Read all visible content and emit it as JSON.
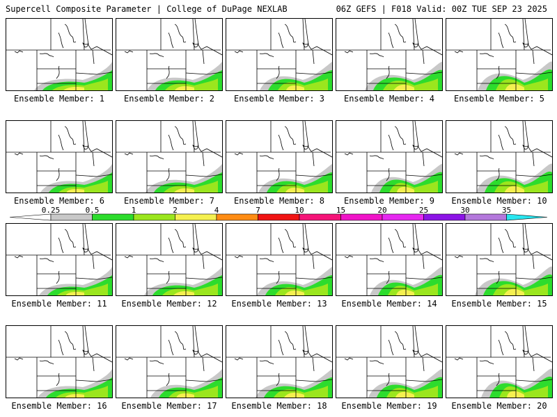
{
  "header": {
    "title_left": "Supercell Composite Parameter | College of DuPage NEXLAB",
    "title_right": "06Z GEFS | F018 Valid: 00Z TUE SEP 23 2025"
  },
  "panel_label_prefix": "Ensemble Member: ",
  "members": [
    "1",
    "2",
    "3",
    "4",
    "5",
    "6",
    "7",
    "8",
    "9",
    "10",
    "11",
    "12",
    "13",
    "14",
    "15",
    "16",
    "17",
    "18",
    "19",
    "20"
  ],
  "legend": {
    "ticks": [
      "0.25",
      "0.5",
      "1",
      "2",
      "4",
      "7",
      "10",
      "15",
      "20",
      "25",
      "30",
      "35"
    ],
    "colors": [
      "#ffffff",
      "#c8c8c8",
      "#2ddc2d",
      "#9be61e",
      "#f5f050",
      "#ff8c14",
      "#f01414",
      "#f51478",
      "#f014c8",
      "#e628f0",
      "#8c14e6",
      "#b478dc",
      "#28e6f0"
    ]
  },
  "map_colors": {
    "light": "#c8c8c8",
    "low": "#2ddc2d",
    "mid": "#9be61e",
    "high": "#f5f050"
  }
}
